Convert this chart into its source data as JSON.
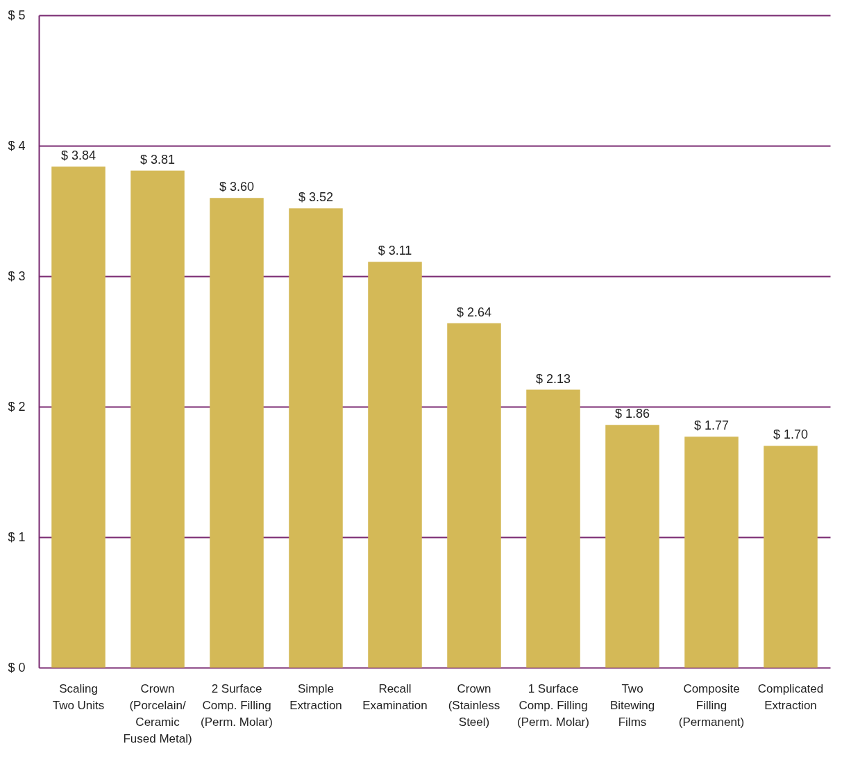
{
  "chart_data": {
    "type": "bar",
    "categories": [
      "Scaling\nTwo Units",
      "Crown\n(Porcelain/\nCeramic\nFused Metal)",
      "2 Surface\nComp. Filling\n(Perm. Molar)",
      "Simple\nExtraction",
      "Recall\nExamination",
      "Crown\n(Stainless\nSteel)",
      "1 Surface\nComp. Filling\n(Perm. Molar)",
      "Two\nBitewing\nFilms",
      "Composite\nFilling\n(Permanent)",
      "Complicated\nExtraction"
    ],
    "values": [
      3.84,
      3.81,
      3.6,
      3.52,
      3.11,
      2.64,
      2.13,
      1.86,
      1.77,
      1.7
    ],
    "value_labels": [
      "$ 3.84",
      "$ 3.81",
      "$ 3.60",
      "$ 3.52",
      "$ 3.11",
      "$ 2.64",
      "$ 2.13",
      "$ 1.86",
      "$ 1.77",
      "$ 1.70"
    ],
    "color": "#d4b957",
    "ylim": [
      0,
      5
    ],
    "yticks": [
      {
        "value": 0,
        "label": "$ 0"
      },
      {
        "value": 1,
        "label": "$ 1"
      },
      {
        "value": 2,
        "label": "$ 2"
      },
      {
        "value": 3,
        "label": "$ 3"
      },
      {
        "value": 4,
        "label": "$ 4"
      },
      {
        "value": 5,
        "label": "$ 5"
      }
    ],
    "grid": "y"
  }
}
